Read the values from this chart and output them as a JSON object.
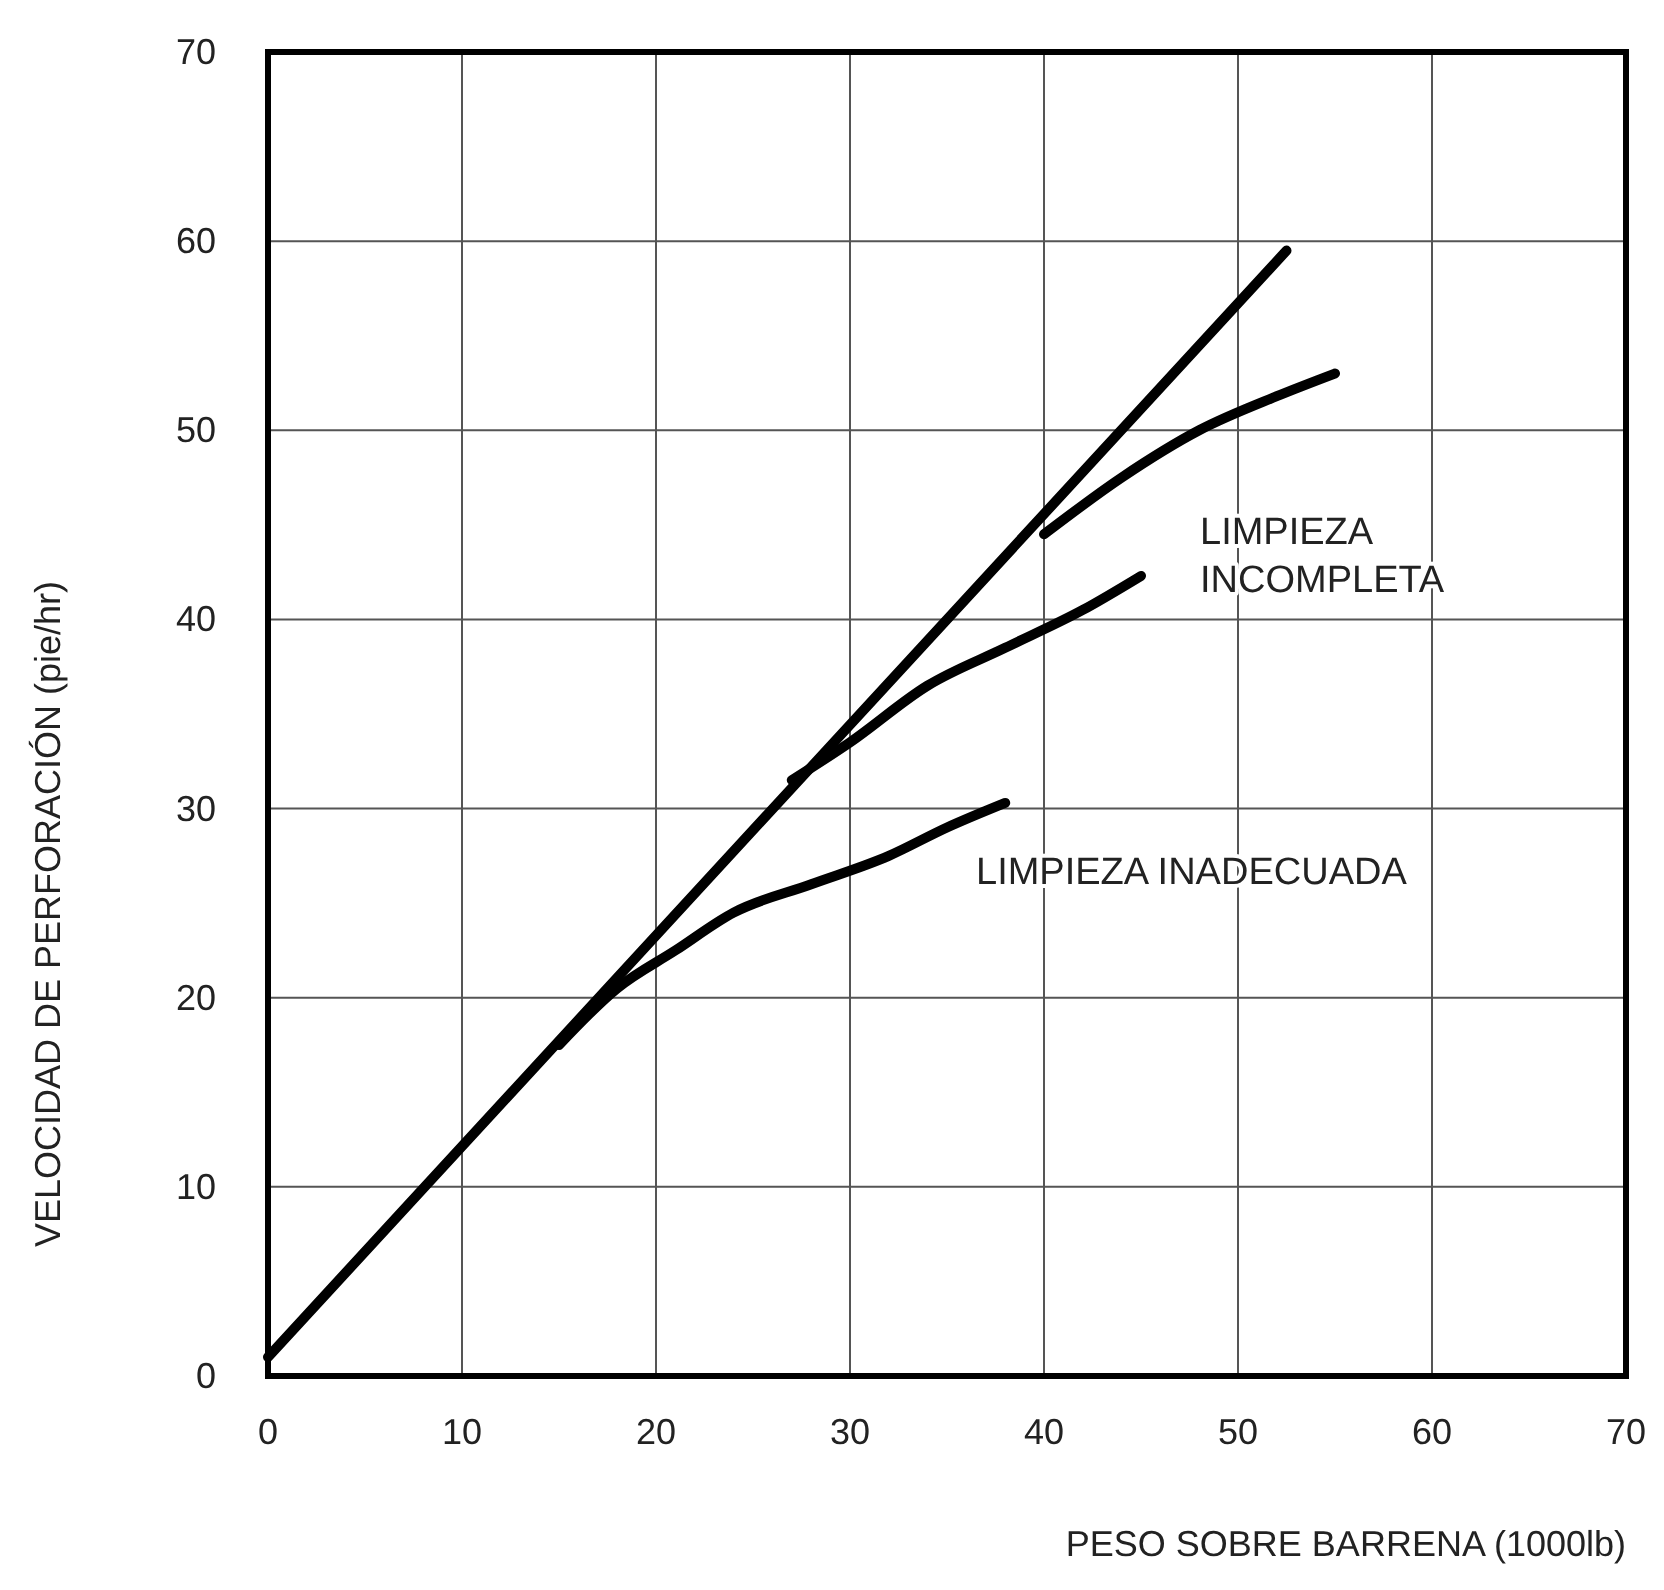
{
  "chart_data": {
    "type": "line",
    "xlabel": "PESO SOBRE BARRENA (1000lb)",
    "ylabel": "VELOCIDAD DE PERFORACIÓN (pie/hr)",
    "xlim": [
      0,
      70
    ],
    "ylim": [
      0,
      70
    ],
    "xticks": [
      0,
      10,
      20,
      30,
      40,
      50,
      60,
      70
    ],
    "yticks": [
      0,
      10,
      20,
      30,
      40,
      50,
      60,
      70
    ],
    "grid": true,
    "marker": "none",
    "line_style": "solid",
    "series": [
      {
        "color": "#000000",
        "x": [
          0,
          52.5
        ],
        "values": [
          1,
          59.5
        ]
      },
      {
        "color": "#000000",
        "x": [
          40,
          44,
          48,
          52,
          55
        ],
        "values": [
          44.5,
          47.5,
          50,
          51.8,
          53
        ]
      },
      {
        "color": "#000000",
        "x": [
          27,
          30,
          34,
          38,
          42,
          45
        ],
        "values": [
          31.5,
          33.5,
          36.5,
          38.5,
          40.5,
          42.3
        ]
      },
      {
        "color": "#000000",
        "x": [
          15,
          18,
          21,
          24,
          28,
          32,
          35,
          38
        ],
        "values": [
          17.5,
          20.5,
          22.5,
          24.5,
          26,
          27.5,
          29,
          30.3
        ]
      }
    ],
    "annotations": [
      "LIMPIEZA\nINCOMPLETA",
      "LIMPIEZA INADECUADA"
    ]
  }
}
